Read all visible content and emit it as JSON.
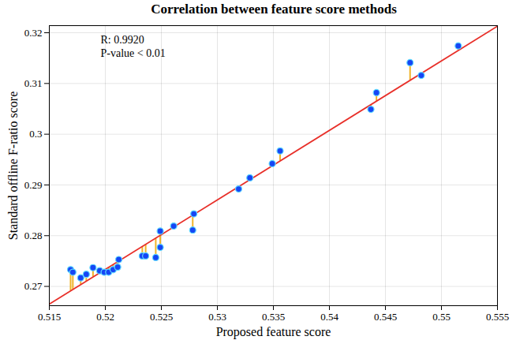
{
  "chart_data": {
    "type": "scatter",
    "title": "Correlation between feature score methods",
    "x_label": "Proposed feature score",
    "y_label": "Standard offline F-ratio score",
    "annotations": [
      "R: 0.9920",
      "P-value < 0.01"
    ],
    "x": [
      0.5169,
      0.5171,
      0.5178,
      0.5183,
      0.5189,
      0.5195,
      0.5199,
      0.5203,
      0.5207,
      0.5211,
      0.5212,
      0.5233,
      0.5236,
      0.5245,
      0.5249,
      0.5249,
      0.5261,
      0.5278,
      0.5279,
      0.5319,
      0.5329,
      0.5349,
      0.5356,
      0.5437,
      0.5442,
      0.5472,
      0.5482,
      0.5515
    ],
    "values": [
      0.2733,
      0.2728,
      0.2717,
      0.2724,
      0.2737,
      0.2731,
      0.2728,
      0.2728,
      0.2733,
      0.2738,
      0.2753,
      0.276,
      0.276,
      0.2757,
      0.2777,
      0.2809,
      0.2819,
      0.2811,
      0.2843,
      0.2892,
      0.2914,
      0.2942,
      0.2967,
      0.3049,
      0.3082,
      0.3141,
      0.3116,
      0.3174
    ],
    "color": "#1646f5",
    "fit_line": {
      "type": "line",
      "x": [
        0.515,
        0.555
      ],
      "values": [
        0.2665,
        0.3213
      ],
      "color": "#e8302a"
    },
    "xlim": [
      0.515,
      0.555
    ],
    "xticks": [
      0.515,
      0.52,
      0.525,
      0.53,
      0.535,
      0.54,
      0.545,
      0.55,
      0.555
    ],
    "ylim": [
      0.2662,
      0.3214
    ],
    "yticks": [
      0.27,
      0.28,
      0.29,
      0.3,
      0.31,
      0.32
    ],
    "grid": true
  }
}
